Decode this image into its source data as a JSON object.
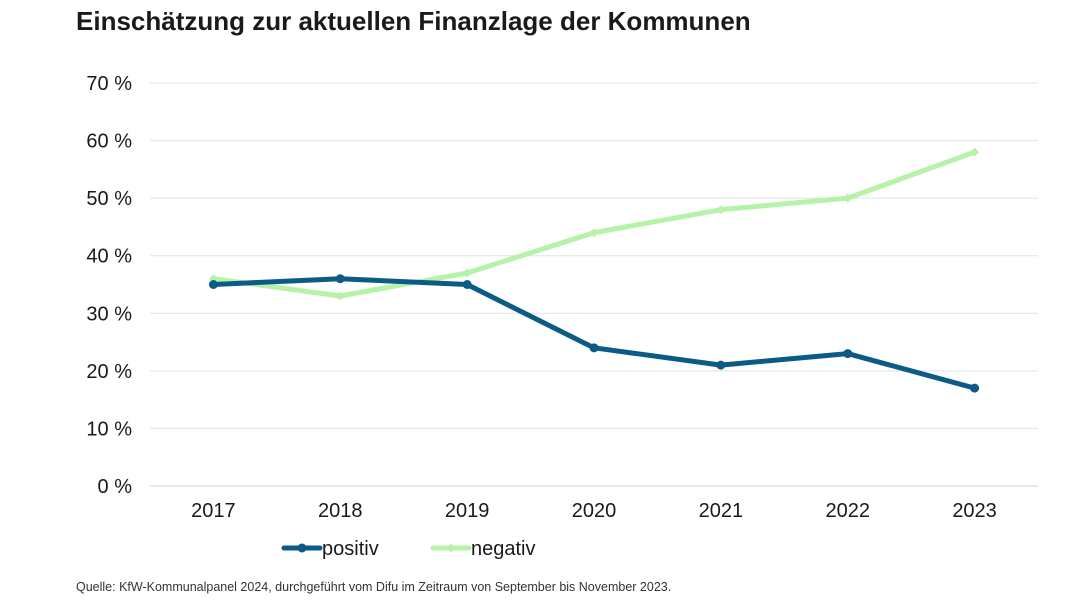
{
  "chart_data": {
    "type": "line",
    "title": "Einschätzung zur aktuellen Finanzlage der Kommunen",
    "xlabel": "",
    "ylabel": "",
    "categories": [
      "2017",
      "2018",
      "2019",
      "2020",
      "2021",
      "2022",
      "2023"
    ],
    "ylim": [
      0,
      70
    ],
    "yticks": [
      0,
      10,
      20,
      30,
      40,
      50,
      60,
      70
    ],
    "ytick_labels": [
      "0 %",
      "10 %",
      "20 %",
      "30 %",
      "40 %",
      "50 %",
      "60 %",
      "70 %"
    ],
    "grid": true,
    "legend_position": "bottom-left",
    "series": [
      {
        "name": "positiv",
        "values": [
          35,
          36,
          35,
          24,
          21,
          23,
          17
        ],
        "color": "#0b5b86"
      },
      {
        "name": "negativ",
        "values": [
          36,
          33,
          37,
          44,
          48,
          50,
          58
        ],
        "color": "#b6f2a8"
      }
    ]
  },
  "source": "Quelle: KfW-Kommunalpanel 2024, durchgeführt vom Difu im Zeitraum von September bis November 2023."
}
